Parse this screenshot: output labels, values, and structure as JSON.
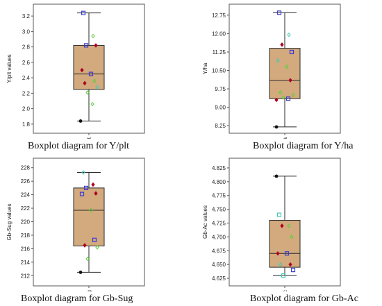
{
  "colors": {
    "box_fill": "#D2AA7E",
    "box_stroke": "#2a2a2a",
    "frame": "#555555",
    "outlier": "#111111",
    "pt_red": "#b0001f",
    "pt_green": "#5ccd3a",
    "pt_teal": "#45c9b4",
    "pt_blue": "#3939d6"
  },
  "chart_data": [
    {
      "type": "boxplot",
      "caption": "Boxplot diagram for Y/plt",
      "ylabel": "Y/plt values",
      "category": "Y/plt",
      "ylim": [
        1.7,
        3.3
      ],
      "yticks": [
        "1.8",
        "2.0",
        "2.2",
        "2.4",
        "2.6",
        "2.8",
        "3.0",
        "3.2"
      ],
      "stats": {
        "min": 1.84,
        "q1": 2.25,
        "median": 2.45,
        "q3": 2.82,
        "max": 3.24
      },
      "outliers": [
        1.84
      ],
      "points": [
        {
          "y": 3.24,
          "color": "pt_blue",
          "shape": "square"
        },
        {
          "y": 2.94,
          "color": "pt_green",
          "shape": "diamond"
        },
        {
          "y": 2.82,
          "color": "pt_blue",
          "shape": "square"
        },
        {
          "y": 2.82,
          "color": "pt_red",
          "shape": "diamond"
        },
        {
          "y": 2.5,
          "color": "pt_red",
          "shape": "diamond"
        },
        {
          "y": 2.45,
          "color": "pt_blue",
          "shape": "square"
        },
        {
          "y": 2.36,
          "color": "pt_green",
          "shape": "diamond"
        },
        {
          "y": 2.33,
          "color": "pt_red",
          "shape": "diamond"
        },
        {
          "y": 2.28,
          "color": "pt_teal",
          "shape": "diamond"
        },
        {
          "y": 2.21,
          "color": "pt_green",
          "shape": "diamond"
        },
        {
          "y": 2.06,
          "color": "pt_green",
          "shape": "diamond"
        }
      ]
    },
    {
      "type": "boxplot",
      "caption": "Boxplot diagram for Y/ha",
      "ylabel": "Y/ha",
      "category": "Y/ha",
      "ylim": [
        8.0,
        13.0
      ],
      "yticks": [
        "8.25",
        "9.00",
        "9.75",
        "10.50",
        "11.25",
        "12.00",
        "12.75"
      ],
      "stats": {
        "min": 8.2,
        "q1": 9.35,
        "median": 10.1,
        "q3": 11.4,
        "max": 12.85
      },
      "outliers": [
        8.2
      ],
      "points": [
        {
          "y": 12.85,
          "color": "pt_blue",
          "shape": "square"
        },
        {
          "y": 11.95,
          "color": "pt_teal",
          "shape": "diamond"
        },
        {
          "y": 11.55,
          "color": "pt_red",
          "shape": "diamond"
        },
        {
          "y": 11.25,
          "color": "pt_blue",
          "shape": "square"
        },
        {
          "y": 10.9,
          "color": "pt_teal",
          "shape": "diamond"
        },
        {
          "y": 10.65,
          "color": "pt_green",
          "shape": "diamond"
        },
        {
          "y": 10.1,
          "color": "pt_red",
          "shape": "diamond"
        },
        {
          "y": 9.6,
          "color": "pt_green",
          "shape": "diamond"
        },
        {
          "y": 9.5,
          "color": "pt_green",
          "shape": "diamond"
        },
        {
          "y": 9.4,
          "color": "pt_green",
          "shape": "diamond"
        },
        {
          "y": 9.35,
          "color": "pt_blue",
          "shape": "square"
        },
        {
          "y": 9.3,
          "color": "pt_red",
          "shape": "diamond"
        }
      ]
    },
    {
      "type": "boxplot",
      "caption": "Boxplot diagram for Gb-Sug",
      "ylabel": "Gb-Sug values",
      "category": "Gb-Sug",
      "ylim": [
        211.0,
        229.0
      ],
      "yticks": [
        "212",
        "214",
        "216",
        "218",
        "220",
        "222",
        "224",
        "226",
        "228"
      ],
      "stats": {
        "min": 212.5,
        "q1": 216.4,
        "median": 221.7,
        "q3": 225.0,
        "max": 227.3
      },
      "outliers": [
        212.5
      ],
      "points": [
        {
          "y": 227.3,
          "color": "pt_teal",
          "shape": "diamond"
        },
        {
          "y": 225.5,
          "color": "pt_red",
          "shape": "diamond"
        },
        {
          "y": 225.0,
          "color": "pt_blue",
          "shape": "square"
        },
        {
          "y": 224.2,
          "color": "pt_red",
          "shape": "diamond"
        },
        {
          "y": 224.1,
          "color": "pt_blue",
          "shape": "square"
        },
        {
          "y": 221.7,
          "color": "pt_green",
          "shape": "diamond"
        },
        {
          "y": 217.3,
          "color": "pt_blue",
          "shape": "square"
        },
        {
          "y": 216.5,
          "color": "pt_red",
          "shape": "diamond"
        },
        {
          "y": 216.2,
          "color": "pt_green",
          "shape": "diamond"
        },
        {
          "y": 214.5,
          "color": "pt_green",
          "shape": "diamond"
        }
      ]
    },
    {
      "type": "boxplot",
      "caption": "Boxplot diagram for Gb-Ac",
      "ylabel": "Gb-Ac values",
      "category": "Gb-Ac",
      "ylim": [
        4.615,
        4.835
      ],
      "yticks": [
        "4.625",
        "4.650",
        "4.675",
        "4.700",
        "4.725",
        "4.750",
        "4.775",
        "4.800",
        "4.825"
      ],
      "stats": {
        "min": 4.63,
        "q1": 4.645,
        "median": 4.67,
        "q3": 4.73,
        "max": 4.81
      },
      "outliers": [
        4.81
      ],
      "points": [
        {
          "y": 4.74,
          "color": "pt_teal",
          "shape": "square"
        },
        {
          "y": 4.72,
          "color": "pt_green",
          "shape": "diamond"
        },
        {
          "y": 4.72,
          "color": "pt_red",
          "shape": "diamond"
        },
        {
          "y": 4.7,
          "color": "pt_green",
          "shape": "diamond"
        },
        {
          "y": 4.67,
          "color": "pt_red",
          "shape": "diamond"
        },
        {
          "y": 4.67,
          "color": "pt_blue",
          "shape": "square"
        },
        {
          "y": 4.65,
          "color": "pt_red",
          "shape": "diamond"
        },
        {
          "y": 4.65,
          "color": "pt_teal",
          "shape": "diamond"
        },
        {
          "y": 4.64,
          "color": "pt_blue",
          "shape": "square"
        },
        {
          "y": 4.63,
          "color": "pt_teal",
          "shape": "square"
        }
      ]
    }
  ]
}
